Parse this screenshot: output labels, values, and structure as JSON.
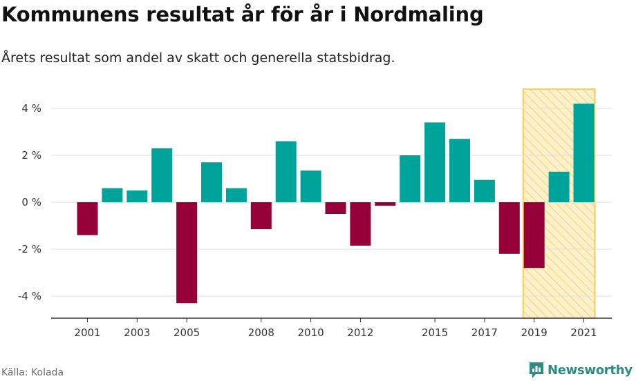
{
  "header": {
    "title": "Kommunens resultat år för år i Nordmaling",
    "subtitle": "Årets resultat som andel av skatt och generella statsbidrag."
  },
  "footer": {
    "source": "Källa: Kolada",
    "brand": "Newsworthy",
    "brand_icon": "newsworthy-chart-bubble-icon"
  },
  "colors": {
    "positive": "#00a39a",
    "negative": "#960039",
    "highlight_fill": "#fdf1cc",
    "highlight_stripe": "#f7d27a",
    "highlight_border": "#f2c24a",
    "grid": "#dddddd",
    "axis": "#333333",
    "brand": "#2d8b83"
  },
  "chart_data": {
    "type": "bar",
    "title": "Kommunens resultat år för år i Nordmaling",
    "subtitle": "Årets resultat som andel av skatt och generella statsbidrag.",
    "xlabel": "",
    "ylabel": "",
    "unit": "%",
    "categories": [
      2001,
      2002,
      2003,
      2004,
      2005,
      2006,
      2007,
      2008,
      2009,
      2010,
      2011,
      2012,
      2013,
      2014,
      2015,
      2016,
      2017,
      2018,
      2019,
      2020,
      2021
    ],
    "values": [
      -1.4,
      0.6,
      0.5,
      2.3,
      -4.3,
      1.7,
      0.6,
      -1.15,
      2.6,
      1.35,
      -0.5,
      -1.85,
      -0.15,
      2.0,
      3.4,
      2.7,
      0.95,
      -2.2,
      -2.8,
      1.3,
      4.2
    ],
    "ylim": [
      -5,
      4.8
    ],
    "y_ticks": [
      {
        "value": 4,
        "label": "4 %"
      },
      {
        "value": 2,
        "label": "2 %"
      },
      {
        "value": 0,
        "label": "0 %"
      },
      {
        "value": -2,
        "label": "-2 %"
      },
      {
        "value": -4,
        "label": "-4 %"
      }
    ],
    "x_tick_labels": [
      {
        "year": 2001,
        "label": "2001"
      },
      {
        "year": 2003,
        "label": "2003"
      },
      {
        "year": 2005,
        "label": "2005"
      },
      {
        "year": 2008,
        "label": "2008"
      },
      {
        "year": 2010,
        "label": "2010"
      },
      {
        "year": 2012,
        "label": "2012"
      },
      {
        "year": 2015,
        "label": "2015"
      },
      {
        "year": 2017,
        "label": "2017"
      },
      {
        "year": 2019,
        "label": "2019"
      },
      {
        "year": 2021,
        "label": "2021"
      }
    ],
    "highlight_range": [
      2019,
      2021
    ],
    "grid": true,
    "legend": "none"
  }
}
